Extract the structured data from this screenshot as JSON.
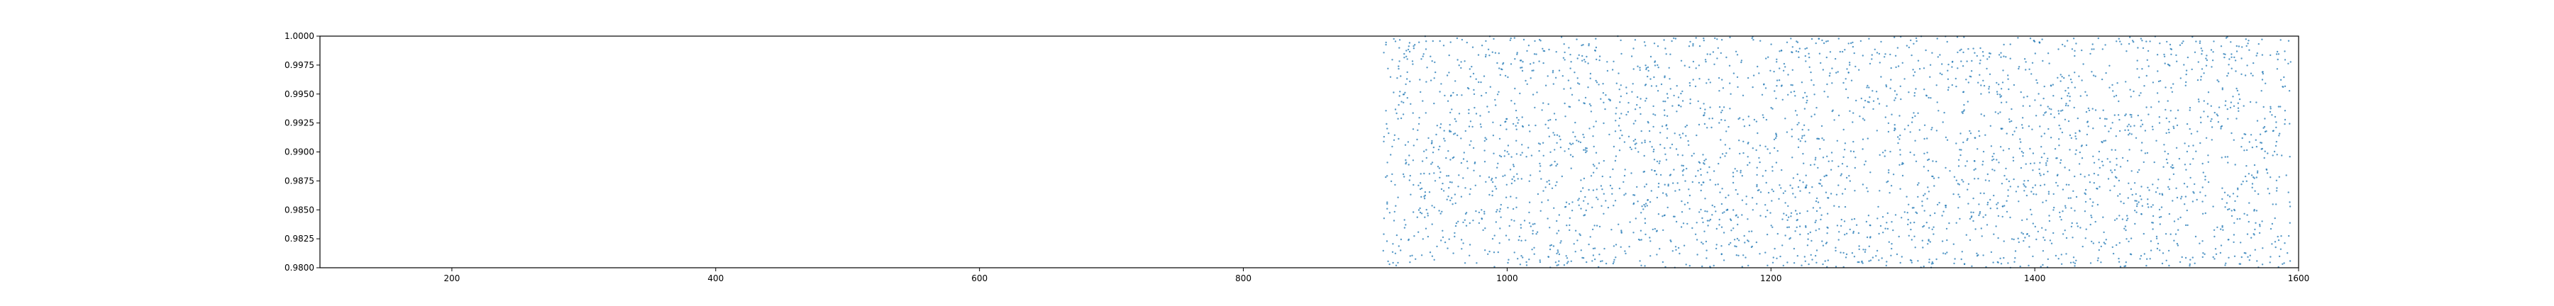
{
  "chart_data": {
    "type": "scatter",
    "title": "",
    "xlabel": "",
    "ylabel": "",
    "xlim": [
      100,
      1600
    ],
    "ylim": [
      0.98,
      1.0
    ],
    "grid": false,
    "legend": "none",
    "x_ticks": [
      200,
      400,
      600,
      800,
      1000,
      1200,
      1400,
      1600
    ],
    "x_tick_labels": [
      "200",
      "400",
      "600",
      "800",
      "1000",
      "1200",
      "1400",
      "1600"
    ],
    "y_ticks": [
      0.98,
      0.9825,
      0.985,
      0.9875,
      0.99,
      0.9925,
      0.995,
      0.9975,
      1.0
    ],
    "y_tick_labels": [
      "0.9800",
      "0.9825",
      "0.9850",
      "0.9875",
      "0.9900",
      "0.9925",
      "0.9950",
      "0.9975",
      "1.0000"
    ],
    "series": [
      {
        "color": "#1f77b4",
        "marker_size": 1.2,
        "point_count": 3200,
        "x_range": [
          906,
          1594
        ],
        "y_range": [
          0.98,
          1.0
        ],
        "distribution": "dense uniform scatter across the full y range for x between 906 and 1594"
      }
    ]
  }
}
